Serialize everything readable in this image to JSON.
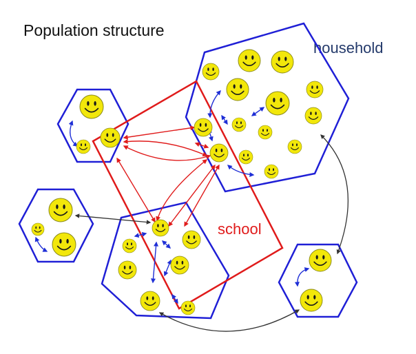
{
  "title": "Population structure",
  "labels": {
    "household": "household",
    "school": "school"
  },
  "colors": {
    "household_outline": "#1f1fd6",
    "school_outline": "#e01b1b",
    "household_label": "#243a6b",
    "school_label": "#e01b1b",
    "household_link": "#1f2fd6",
    "school_link": "#e01b1b",
    "between_household_link": "#333333",
    "smiley_fill": "#f2e70a",
    "smiley_stroke": "#8a8a1a",
    "smiley_face": "#1a1a1a"
  },
  "icons": {
    "person": "smiley-face-icon",
    "household": "hexagon",
    "school": "rectangle"
  }
}
